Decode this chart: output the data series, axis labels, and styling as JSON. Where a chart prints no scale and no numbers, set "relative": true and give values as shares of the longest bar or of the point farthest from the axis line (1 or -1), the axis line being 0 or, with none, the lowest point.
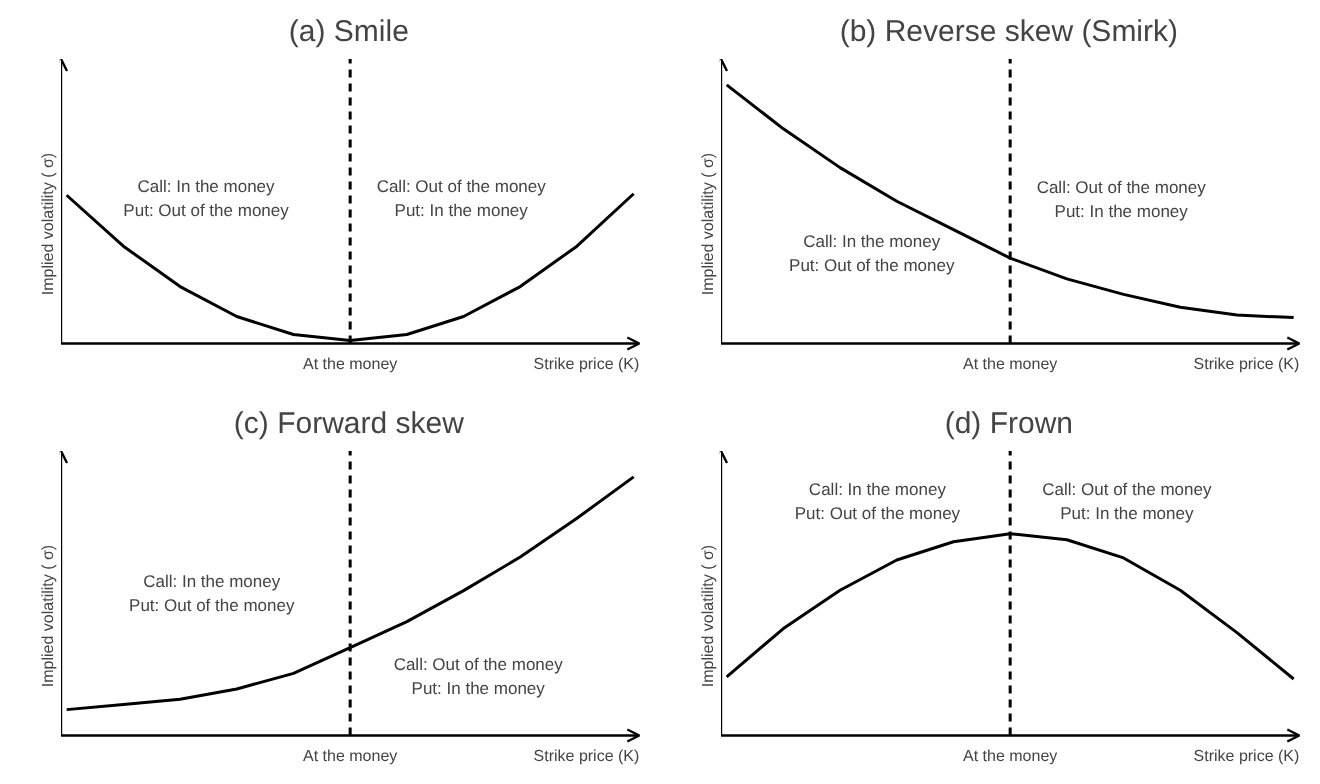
{
  "chart_data": [
    {
      "type": "line",
      "title": "(a)  Smile",
      "xlabel": "Strike price (K)",
      "ylabel": "Implied volatility ( σ)",
      "relative": true,
      "grid": false,
      "categories": [
        null,
        null,
        null,
        null,
        null,
        null,
        null,
        null,
        null,
        null,
        null
      ],
      "series": [
        {
          "color": "#000000",
          "values": [
            0.99,
            0.65,
            0.38,
            0.18,
            0.06,
            0.02,
            0.06,
            0.18,
            0.38,
            0.65,
            1
          ]
        }
      ],
      "annotations": [
        "Call:  In the money\nPut:  Out of the money",
        "Call:  Out of the money\nPut:  In the money",
        "At the money"
      ]
    },
    {
      "type": "line",
      "title": "(b)  Reverse skew (Smirk)",
      "xlabel": "Strike price (K)",
      "ylabel": "Implied volatility ( σ)",
      "relative": true,
      "grid": false,
      "categories": [
        null,
        null,
        null,
        null,
        null,
        null,
        null,
        null,
        null,
        null,
        null
      ],
      "series": [
        {
          "color": "#000000",
          "values": [
            1,
            0.83,
            0.68,
            0.55,
            0.44,
            0.33,
            0.25,
            0.19,
            0.14,
            0.11,
            0.1
          ]
        }
      ],
      "annotations": [
        "Call:  In the money\nPut:  Out of the money",
        "Call:  Out of the money\nPut:  In the money",
        "At the money"
      ]
    },
    {
      "type": "line",
      "title": "(c)  Forward skew",
      "xlabel": "Strike price (K)",
      "ylabel": "Implied volatility ( σ)",
      "relative": true,
      "grid": false,
      "categories": [
        null,
        null,
        null,
        null,
        null,
        null,
        null,
        null,
        null,
        null,
        null
      ],
      "series": [
        {
          "color": "#000000",
          "values": [
            0.1,
            0.12,
            0.14,
            0.18,
            0.24,
            0.34,
            0.44,
            0.56,
            0.69,
            0.84,
            1
          ]
        }
      ],
      "annotations": [
        "Call:  In the money\nPut:  Out of the money",
        "Call:  Out of the money\nPut:  In the money",
        "At the money"
      ]
    },
    {
      "type": "line",
      "title": "(d)  Frown",
      "xlabel": "Strike price (K)",
      "ylabel": "Implied volatility ( σ)",
      "relative": true,
      "grid": false,
      "categories": [
        null,
        null,
        null,
        null,
        null,
        null,
        null,
        null,
        null,
        null,
        null
      ],
      "series": [
        {
          "color": "#000000",
          "values": [
            0.29,
            0.53,
            0.72,
            0.87,
            0.96,
            1,
            0.97,
            0.88,
            0.72,
            0.51,
            0.28
          ]
        }
      ],
      "annotations": [
        "Call:  In the money\nPut:  Out of the money",
        "Call:  Out of the money\nPut:  In the money",
        "At the money"
      ]
    }
  ]
}
